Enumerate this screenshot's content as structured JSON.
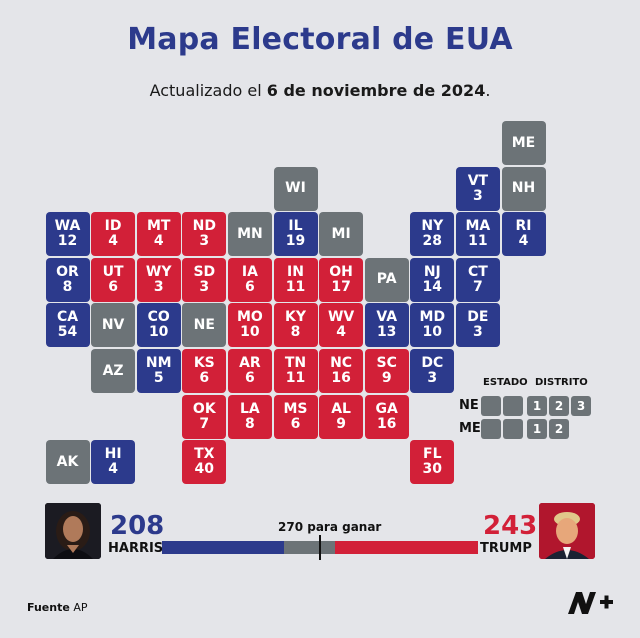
{
  "header": {
    "title": "Mapa Electoral de EUA",
    "subtitle_prefix": "Actualizado el",
    "subtitle_date": "6 de noviembre de 2024",
    "subtitle_suffix": "."
  },
  "colors": {
    "harris": "#2c3a8c",
    "trump": "#d22038",
    "undecided": "#6c7377"
  },
  "states": [
    {
      "id": "ME",
      "votes": "",
      "party": "U"
    },
    {
      "id": "WI",
      "votes": "",
      "party": "U"
    },
    {
      "id": "VT",
      "votes": "3",
      "party": "D"
    },
    {
      "id": "NH",
      "votes": "",
      "party": "U"
    },
    {
      "id": "WA",
      "votes": "12",
      "party": "D"
    },
    {
      "id": "ID",
      "votes": "4",
      "party": "R"
    },
    {
      "id": "MT",
      "votes": "4",
      "party": "R"
    },
    {
      "id": "ND",
      "votes": "3",
      "party": "R"
    },
    {
      "id": "MN",
      "votes": "",
      "party": "U"
    },
    {
      "id": "IL",
      "votes": "19",
      "party": "D"
    },
    {
      "id": "MI",
      "votes": "",
      "party": "U"
    },
    {
      "id": "NY",
      "votes": "28",
      "party": "D"
    },
    {
      "id": "MA",
      "votes": "11",
      "party": "D"
    },
    {
      "id": "RI",
      "votes": "4",
      "party": "D"
    },
    {
      "id": "OR",
      "votes": "8",
      "party": "D"
    },
    {
      "id": "UT",
      "votes": "6",
      "party": "R"
    },
    {
      "id": "WY",
      "votes": "3",
      "party": "R"
    },
    {
      "id": "SD",
      "votes": "3",
      "party": "R"
    },
    {
      "id": "IA",
      "votes": "6",
      "party": "R"
    },
    {
      "id": "IN",
      "votes": "11",
      "party": "R"
    },
    {
      "id": "OH",
      "votes": "17",
      "party": "R"
    },
    {
      "id": "PA",
      "votes": "",
      "party": "U"
    },
    {
      "id": "NJ",
      "votes": "14",
      "party": "D"
    },
    {
      "id": "CT",
      "votes": "7",
      "party": "D"
    },
    {
      "id": "CA",
      "votes": "54",
      "party": "D"
    },
    {
      "id": "NV",
      "votes": "",
      "party": "U"
    },
    {
      "id": "CO",
      "votes": "10",
      "party": "D"
    },
    {
      "id": "NE",
      "votes": "",
      "party": "U"
    },
    {
      "id": "MO",
      "votes": "10",
      "party": "R"
    },
    {
      "id": "KY",
      "votes": "8",
      "party": "R"
    },
    {
      "id": "WV",
      "votes": "4",
      "party": "R"
    },
    {
      "id": "VA",
      "votes": "13",
      "party": "D"
    },
    {
      "id": "MD",
      "votes": "10",
      "party": "D"
    },
    {
      "id": "DE",
      "votes": "3",
      "party": "D"
    },
    {
      "id": "AZ",
      "votes": "",
      "party": "U"
    },
    {
      "id": "NM",
      "votes": "5",
      "party": "D"
    },
    {
      "id": "KS",
      "votes": "6",
      "party": "R"
    },
    {
      "id": "AR",
      "votes": "6",
      "party": "R"
    },
    {
      "id": "TN",
      "votes": "11",
      "party": "R"
    },
    {
      "id": "NC",
      "votes": "16",
      "party": "R"
    },
    {
      "id": "SC",
      "votes": "9",
      "party": "R"
    },
    {
      "id": "DC",
      "votes": "3",
      "party": "D"
    },
    {
      "id": "OK",
      "votes": "7",
      "party": "R"
    },
    {
      "id": "LA",
      "votes": "8",
      "party": "R"
    },
    {
      "id": "MS",
      "votes": "6",
      "party": "R"
    },
    {
      "id": "AL",
      "votes": "9",
      "party": "R"
    },
    {
      "id": "GA",
      "votes": "16",
      "party": "R"
    },
    {
      "id": "AK",
      "votes": "",
      "party": "U"
    },
    {
      "id": "HI",
      "votes": "4",
      "party": "D"
    },
    {
      "id": "TX",
      "votes": "40",
      "party": "R"
    },
    {
      "id": "FL",
      "votes": "30",
      "party": "R"
    }
  ],
  "legend": {
    "state_header": "ESTADO",
    "district_header": "DISTRITO",
    "ne_label": "NE",
    "me_label": "ME",
    "ne_districts": [
      "1",
      "2",
      "3"
    ],
    "me_districts": [
      "1",
      "2"
    ]
  },
  "results": {
    "harris_votes": "208",
    "harris_name": "HARRIS",
    "trump_votes": "243",
    "trump_name": "TRUMP",
    "threshold_label": "270 para ganar",
    "total_votes": 538,
    "threshold": 270
  },
  "footer": {
    "source_label": "Fuente",
    "source_value": "AP"
  }
}
